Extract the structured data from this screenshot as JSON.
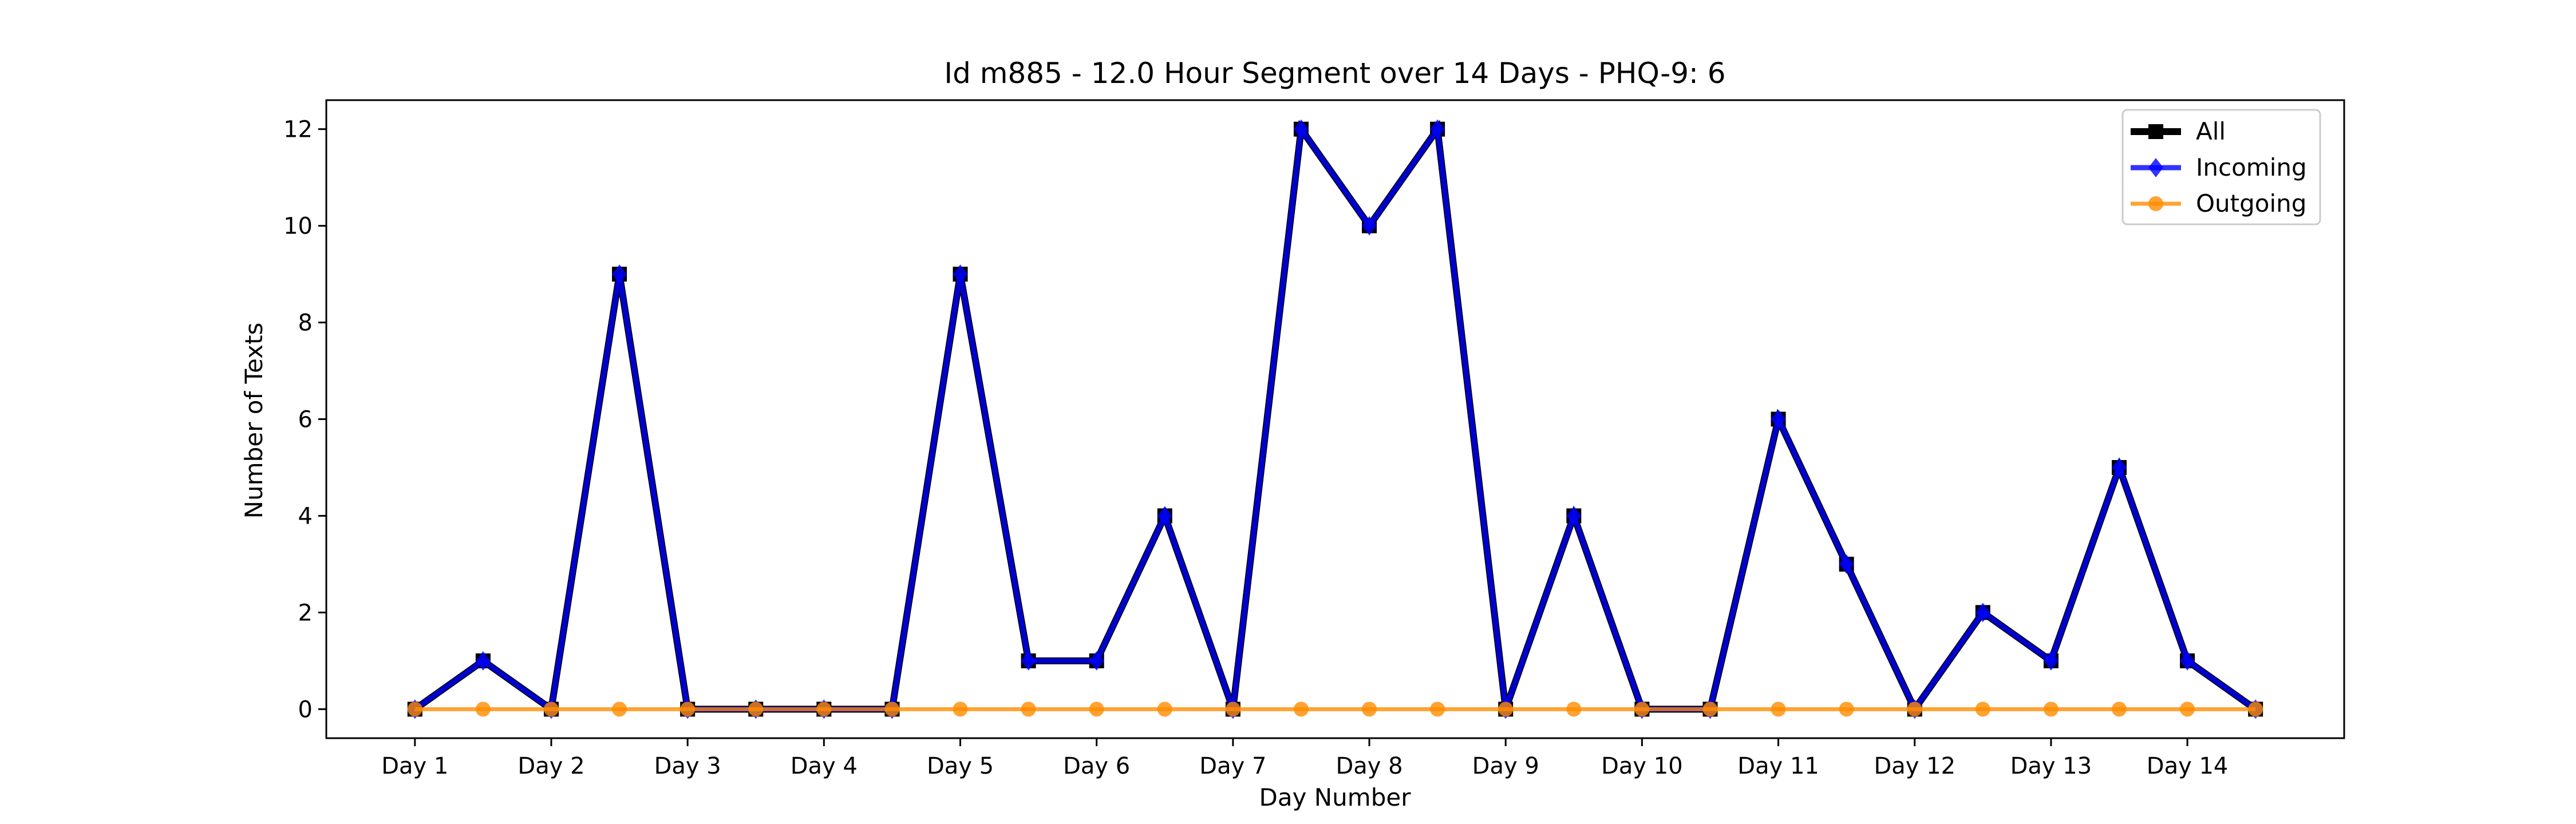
{
  "chart_data": {
    "type": "line",
    "title": "Id m885 - 12.0 Hour Segment over 14 Days - PHQ-9: 6",
    "xlabel": "Day Number",
    "ylabel": "Number of Texts",
    "xlim": [
      0.35,
      15.15
    ],
    "ylim": [
      -0.6,
      12.6
    ],
    "x": [
      1,
      1.5,
      2,
      2.5,
      3,
      3.5,
      4,
      4.5,
      5,
      5.5,
      6,
      6.5,
      7,
      7.5,
      8,
      8.5,
      9,
      9.5,
      10,
      10.5,
      11,
      11.5,
      12,
      12.5,
      13,
      13.5,
      14,
      14.5
    ],
    "xticks": [
      1,
      2,
      3,
      4,
      5,
      6,
      7,
      8,
      9,
      10,
      11,
      12,
      13,
      14
    ],
    "xtick_labels": [
      "Day 1",
      "Day 2",
      "Day 3",
      "Day 4",
      "Day 5",
      "Day 6",
      "Day 7",
      "Day 8",
      "Day 9",
      "Day 10",
      "Day 11",
      "Day 12",
      "Day 13",
      "Day 14"
    ],
    "yticks": [
      0,
      2,
      4,
      6,
      8,
      10,
      12
    ],
    "legend_position": "top-right",
    "grid": false,
    "series": [
      {
        "name": "All",
        "color": "#000000",
        "marker": "square",
        "values": [
          0,
          1,
          0,
          9,
          0,
          0,
          0,
          0,
          9,
          1,
          1,
          4,
          0,
          12,
          10,
          12,
          0,
          4,
          0,
          0,
          6,
          3,
          0,
          2,
          1,
          5,
          1,
          0
        ]
      },
      {
        "name": "Incoming",
        "color": "#0000ff",
        "marker": "diamond",
        "values": [
          0,
          1,
          0,
          9,
          0,
          0,
          0,
          0,
          9,
          1,
          1,
          4,
          0,
          12,
          10,
          12,
          0,
          4,
          0,
          0,
          6,
          3,
          0,
          2,
          1,
          5,
          1,
          0
        ]
      },
      {
        "name": "Outgoing",
        "color": "#ff8c00",
        "marker": "circle",
        "values": [
          0,
          0,
          0,
          0,
          0,
          0,
          0,
          0,
          0,
          0,
          0,
          0,
          0,
          0,
          0,
          0,
          0,
          0,
          0,
          0,
          0,
          0,
          0,
          0,
          0,
          0,
          0,
          0
        ]
      }
    ]
  }
}
